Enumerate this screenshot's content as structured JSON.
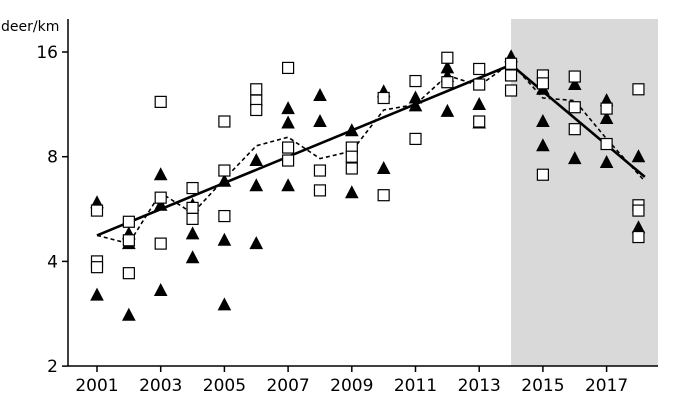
{
  "chart_data": {
    "type": "scatter",
    "title": "",
    "ylabel": "deer/km",
    "xlabel": "",
    "y_scale": "log2",
    "ylim": [
      2,
      18.5
    ],
    "xlim": [
      2000.15,
      2018.6
    ],
    "x_ticks": [
      "2001",
      "2003",
      "2005",
      "2007",
      "2009",
      "2011",
      "2013",
      "2015",
      "2017"
    ],
    "x_tick_values": [
      2001,
      2003,
      2005,
      2007,
      2009,
      2011,
      2013,
      2015,
      2017
    ],
    "y_ticks": [
      "2",
      "4",
      "8",
      "16"
    ],
    "y_tick_values": [
      2,
      4,
      8,
      16
    ],
    "shaded_region": [
      2014,
      2018.6
    ],
    "colors": {
      "shade": "#d9d9d9",
      "marker": "#000000",
      "open_marker_fill": "#ffffff"
    },
    "series": [
      {
        "marker": "filled-triangle",
        "points": [
          [
            2001,
            5.9
          ],
          [
            2001,
            3.2
          ],
          [
            2002,
            4.8
          ],
          [
            2002,
            4.5
          ],
          [
            2002,
            2.8
          ],
          [
            2003,
            7.1
          ],
          [
            2003,
            5.8
          ],
          [
            2003,
            3.3
          ],
          [
            2004,
            5.8
          ],
          [
            2004,
            4.8
          ],
          [
            2004,
            4.1
          ],
          [
            2005,
            6.8
          ],
          [
            2005,
            4.6
          ],
          [
            2005,
            3.0
          ],
          [
            2006,
            7.8
          ],
          [
            2006,
            6.6
          ],
          [
            2006,
            4.5
          ],
          [
            2007,
            11.0
          ],
          [
            2007,
            10.0
          ],
          [
            2007,
            6.6
          ],
          [
            2008,
            12.0
          ],
          [
            2008,
            10.1
          ],
          [
            2009,
            9.5
          ],
          [
            2009,
            6.3
          ],
          [
            2010,
            12.3
          ],
          [
            2010,
            7.4
          ],
          [
            2011,
            11.8
          ],
          [
            2011,
            11.2
          ],
          [
            2012,
            14.4
          ],
          [
            2012,
            13.6
          ],
          [
            2012,
            10.8
          ],
          [
            2013,
            11.3
          ],
          [
            2013,
            10.0
          ],
          [
            2014,
            15.5
          ],
          [
            2015,
            12.5
          ],
          [
            2015,
            10.1
          ],
          [
            2015,
            8.6
          ],
          [
            2016,
            12.9
          ],
          [
            2016,
            7.9
          ],
          [
            2017,
            11.6
          ],
          [
            2017,
            10.3
          ],
          [
            2017,
            7.7
          ],
          [
            2018,
            8.0
          ],
          [
            2018,
            5.0
          ]
        ]
      },
      {
        "marker": "open-square",
        "points": [
          [
            2001,
            5.6
          ],
          [
            2001,
            4.0
          ],
          [
            2001,
            3.85
          ],
          [
            2002,
            5.2
          ],
          [
            2002,
            4.6
          ],
          [
            2002,
            3.7
          ],
          [
            2003,
            11.5
          ],
          [
            2003,
            6.1
          ],
          [
            2003,
            4.5
          ],
          [
            2004,
            6.5
          ],
          [
            2004,
            5.7
          ],
          [
            2004,
            5.3
          ],
          [
            2005,
            10.1
          ],
          [
            2005,
            7.3
          ],
          [
            2005,
            5.4
          ],
          [
            2006,
            12.5
          ],
          [
            2006,
            11.6
          ],
          [
            2006,
            10.9
          ],
          [
            2007,
            14.4
          ],
          [
            2007,
            8.5
          ],
          [
            2007,
            7.8
          ],
          [
            2008,
            7.3
          ],
          [
            2008,
            6.4
          ],
          [
            2009,
            8.5
          ],
          [
            2009,
            8.0
          ],
          [
            2009,
            7.4
          ],
          [
            2010,
            11.8
          ],
          [
            2010,
            6.2
          ],
          [
            2011,
            13.2
          ],
          [
            2011,
            9.0
          ],
          [
            2012,
            15.4
          ],
          [
            2012,
            13.1
          ],
          [
            2013,
            14.3
          ],
          [
            2013,
            12.9
          ],
          [
            2013,
            10.1
          ],
          [
            2014,
            14.8
          ],
          [
            2014,
            13.7
          ],
          [
            2014,
            12.4
          ],
          [
            2015,
            13.7
          ],
          [
            2015,
            13.0
          ],
          [
            2015,
            7.1
          ],
          [
            2016,
            13.6
          ],
          [
            2016,
            11.1
          ],
          [
            2016,
            9.6
          ],
          [
            2017,
            11.0
          ],
          [
            2017,
            8.7
          ],
          [
            2018,
            12.5
          ],
          [
            2018,
            5.8
          ],
          [
            2018,
            5.6
          ],
          [
            2018,
            4.7
          ]
        ]
      },
      {
        "line": "solid",
        "points": [
          [
            2001,
            4.75
          ],
          [
            2014,
            14.7
          ],
          [
            2018.2,
            7.0
          ]
        ]
      },
      {
        "line": "dashed",
        "points": [
          [
            2001,
            4.75
          ],
          [
            2002,
            4.5
          ],
          [
            2003,
            6.3
          ],
          [
            2004,
            5.5
          ],
          [
            2005,
            6.9
          ],
          [
            2006,
            8.6
          ],
          [
            2007,
            9.1
          ],
          [
            2008,
            7.9
          ],
          [
            2009,
            8.3
          ],
          [
            2010,
            10.9
          ],
          [
            2011,
            11.3
          ],
          [
            2012,
            13.7
          ],
          [
            2013,
            12.8
          ],
          [
            2014,
            14.9
          ],
          [
            2015,
            11.8
          ],
          [
            2016,
            11.6
          ],
          [
            2017,
            9.0
          ],
          [
            2018.2,
            6.8
          ]
        ]
      }
    ]
  }
}
